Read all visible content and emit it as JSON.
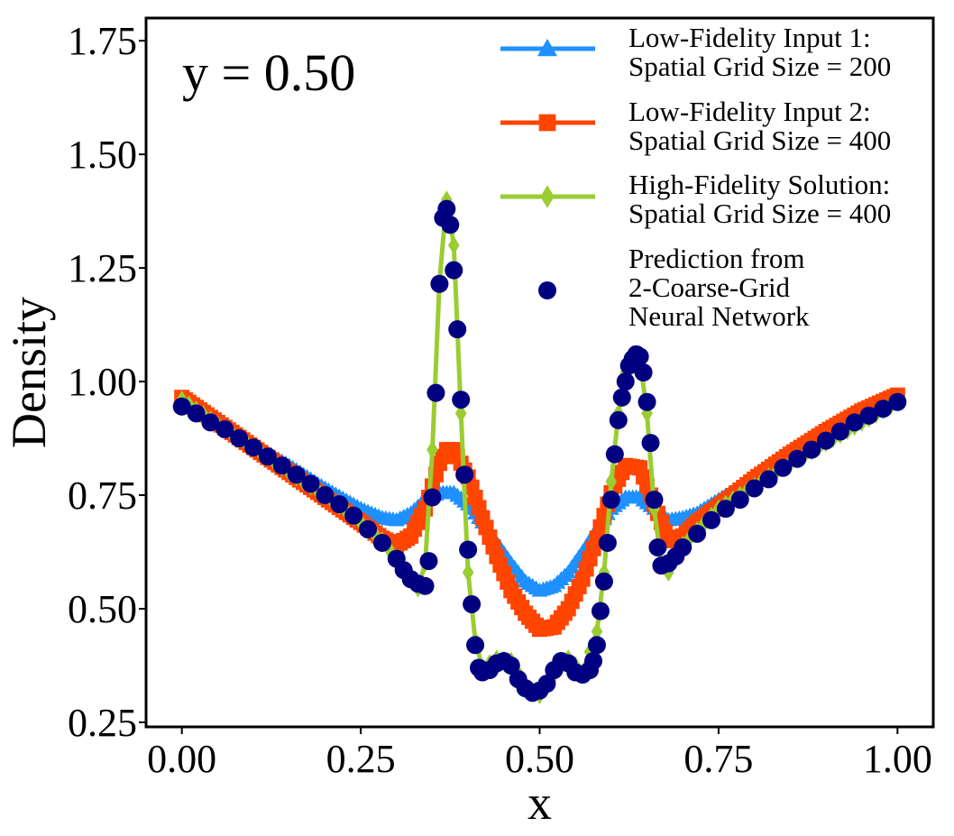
{
  "chart_data": {
    "type": "line",
    "title": "",
    "annotation": "y = 0.50",
    "xlabel": "x",
    "ylabel": "Density",
    "xlim": [
      -0.05,
      1.05
    ],
    "ylim": [
      0.24,
      1.8
    ],
    "xticks": [
      "0.00",
      "0.25",
      "0.50",
      "0.75",
      "1.00"
    ],
    "yticks": [
      "0.25",
      "0.50",
      "0.75",
      "1.00",
      "1.25",
      "1.50",
      "1.75"
    ],
    "grid": false,
    "legend_position": "top-right",
    "series": [
      {
        "name": "Low-Fidelity Input 1:\nSpatial Grid Size = 200",
        "label_lines": [
          "Low-Fidelity Input 1:",
          "Spatial Grid Size = 200"
        ],
        "color": "#1e90ff",
        "marker": "triangle",
        "points": [
          [
            0.0,
            0.965
          ],
          [
            0.05,
            0.91
          ],
          [
            0.1,
            0.86
          ],
          [
            0.15,
            0.815
          ],
          [
            0.2,
            0.765
          ],
          [
            0.25,
            0.72
          ],
          [
            0.28,
            0.7
          ],
          [
            0.3,
            0.695
          ],
          [
            0.32,
            0.71
          ],
          [
            0.34,
            0.74
          ],
          [
            0.36,
            0.755
          ],
          [
            0.38,
            0.755
          ],
          [
            0.4,
            0.73
          ],
          [
            0.42,
            0.69
          ],
          [
            0.44,
            0.645
          ],
          [
            0.46,
            0.6
          ],
          [
            0.48,
            0.56
          ],
          [
            0.5,
            0.54
          ],
          [
            0.52,
            0.55
          ],
          [
            0.54,
            0.58
          ],
          [
            0.56,
            0.625
          ],
          [
            0.58,
            0.675
          ],
          [
            0.6,
            0.72
          ],
          [
            0.62,
            0.745
          ],
          [
            0.64,
            0.745
          ],
          [
            0.66,
            0.72
          ],
          [
            0.68,
            0.695
          ],
          [
            0.7,
            0.7
          ],
          [
            0.72,
            0.71
          ],
          [
            0.75,
            0.74
          ],
          [
            0.8,
            0.785
          ],
          [
            0.85,
            0.83
          ],
          [
            0.9,
            0.875
          ],
          [
            0.95,
            0.92
          ],
          [
            1.0,
            0.97
          ]
        ]
      },
      {
        "name": "Low-Fidelity Input 2:\nSpatial Grid Size = 400",
        "label_lines": [
          "Low-Fidelity Input 2:",
          "Spatial Grid Size = 400"
        ],
        "color": "#ff4500",
        "marker": "square",
        "points": [
          [
            0.0,
            0.965
          ],
          [
            0.05,
            0.91
          ],
          [
            0.1,
            0.855
          ],
          [
            0.15,
            0.8
          ],
          [
            0.2,
            0.745
          ],
          [
            0.25,
            0.69
          ],
          [
            0.28,
            0.655
          ],
          [
            0.3,
            0.64
          ],
          [
            0.32,
            0.66
          ],
          [
            0.34,
            0.72
          ],
          [
            0.36,
            0.82
          ],
          [
            0.37,
            0.85
          ],
          [
            0.38,
            0.85
          ],
          [
            0.4,
            0.79
          ],
          [
            0.42,
            0.7
          ],
          [
            0.44,
            0.615
          ],
          [
            0.46,
            0.54
          ],
          [
            0.48,
            0.49
          ],
          [
            0.5,
            0.455
          ],
          [
            0.52,
            0.46
          ],
          [
            0.54,
            0.5
          ],
          [
            0.56,
            0.565
          ],
          [
            0.58,
            0.655
          ],
          [
            0.6,
            0.755
          ],
          [
            0.62,
            0.815
          ],
          [
            0.64,
            0.81
          ],
          [
            0.66,
            0.73
          ],
          [
            0.68,
            0.65
          ],
          [
            0.7,
            0.66
          ],
          [
            0.72,
            0.69
          ],
          [
            0.75,
            0.725
          ],
          [
            0.8,
            0.785
          ],
          [
            0.85,
            0.84
          ],
          [
            0.9,
            0.89
          ],
          [
            0.95,
            0.935
          ],
          [
            1.0,
            0.97
          ]
        ]
      },
      {
        "name": "High-Fidelity Solution:\nSpatial Grid Size = 400",
        "label_lines": [
          "High-Fidelity Solution:",
          "Spatial Grid Size = 400"
        ],
        "color": "#9acd32",
        "marker": "diamond",
        "points": [
          [
            0.0,
            0.96
          ],
          [
            0.05,
            0.905
          ],
          [
            0.1,
            0.855
          ],
          [
            0.15,
            0.8
          ],
          [
            0.2,
            0.75
          ],
          [
            0.25,
            0.69
          ],
          [
            0.28,
            0.65
          ],
          [
            0.3,
            0.61
          ],
          [
            0.32,
            0.565
          ],
          [
            0.33,
            0.545
          ],
          [
            0.34,
            0.6
          ],
          [
            0.35,
            0.85
          ],
          [
            0.36,
            1.22
          ],
          [
            0.37,
            1.4
          ],
          [
            0.38,
            1.3
          ],
          [
            0.39,
            0.93
          ],
          [
            0.4,
            0.58
          ],
          [
            0.41,
            0.43
          ],
          [
            0.42,
            0.37
          ],
          [
            0.44,
            0.39
          ],
          [
            0.46,
            0.385
          ],
          [
            0.48,
            0.33
          ],
          [
            0.5,
            0.31
          ],
          [
            0.52,
            0.355
          ],
          [
            0.54,
            0.39
          ],
          [
            0.56,
            0.36
          ],
          [
            0.58,
            0.45
          ],
          [
            0.59,
            0.58
          ],
          [
            0.6,
            0.78
          ],
          [
            0.61,
            0.93
          ],
          [
            0.62,
            1.02
          ],
          [
            0.63,
            1.06
          ],
          [
            0.64,
            1.05
          ],
          [
            0.65,
            0.93
          ],
          [
            0.66,
            0.72
          ],
          [
            0.67,
            0.6
          ],
          [
            0.68,
            0.58
          ],
          [
            0.7,
            0.64
          ],
          [
            0.75,
            0.72
          ],
          [
            0.8,
            0.77
          ],
          [
            0.85,
            0.82
          ],
          [
            0.9,
            0.865
          ],
          [
            0.95,
            0.91
          ],
          [
            1.0,
            0.955
          ]
        ]
      },
      {
        "name": "Prediction from\n2-Coarse-Grid\nNeural Network",
        "label_lines": [
          "Prediction from",
          "2-Coarse-Grid",
          "Neural Network"
        ],
        "color": "#000080",
        "marker": "circle",
        "points": [
          [
            0.0,
            0.945
          ],
          [
            0.02,
            0.93
          ],
          [
            0.04,
            0.91
          ],
          [
            0.06,
            0.895
          ],
          [
            0.08,
            0.875
          ],
          [
            0.1,
            0.855
          ],
          [
            0.12,
            0.835
          ],
          [
            0.14,
            0.815
          ],
          [
            0.16,
            0.795
          ],
          [
            0.18,
            0.775
          ],
          [
            0.2,
            0.75
          ],
          [
            0.22,
            0.73
          ],
          [
            0.24,
            0.705
          ],
          [
            0.26,
            0.675
          ],
          [
            0.28,
            0.645
          ],
          [
            0.3,
            0.61
          ],
          [
            0.31,
            0.585
          ],
          [
            0.32,
            0.565
          ],
          [
            0.33,
            0.555
          ],
          [
            0.34,
            0.55
          ],
          [
            0.345,
            0.605
          ],
          [
            0.35,
            0.745
          ],
          [
            0.355,
            0.975
          ],
          [
            0.36,
            1.215
          ],
          [
            0.365,
            1.36
          ],
          [
            0.37,
            1.38
          ],
          [
            0.375,
            1.345
          ],
          [
            0.38,
            1.245
          ],
          [
            0.385,
            1.115
          ],
          [
            0.39,
            0.96
          ],
          [
            0.395,
            0.795
          ],
          [
            0.4,
            0.63
          ],
          [
            0.405,
            0.51
          ],
          [
            0.41,
            0.42
          ],
          [
            0.415,
            0.37
          ],
          [
            0.42,
            0.36
          ],
          [
            0.43,
            0.365
          ],
          [
            0.44,
            0.38
          ],
          [
            0.45,
            0.385
          ],
          [
            0.46,
            0.375
          ],
          [
            0.47,
            0.345
          ],
          [
            0.48,
            0.325
          ],
          [
            0.49,
            0.315
          ],
          [
            0.5,
            0.32
          ],
          [
            0.51,
            0.335
          ],
          [
            0.52,
            0.365
          ],
          [
            0.53,
            0.385
          ],
          [
            0.54,
            0.38
          ],
          [
            0.55,
            0.36
          ],
          [
            0.56,
            0.355
          ],
          [
            0.57,
            0.365
          ],
          [
            0.575,
            0.385
          ],
          [
            0.58,
            0.42
          ],
          [
            0.585,
            0.495
          ],
          [
            0.59,
            0.56
          ],
          [
            0.595,
            0.645
          ],
          [
            0.6,
            0.74
          ],
          [
            0.605,
            0.84
          ],
          [
            0.61,
            0.915
          ],
          [
            0.615,
            0.965
          ],
          [
            0.62,
            1.0
          ],
          [
            0.625,
            1.035
          ],
          [
            0.63,
            1.05
          ],
          [
            0.635,
            1.06
          ],
          [
            0.64,
            1.055
          ],
          [
            0.645,
            1.02
          ],
          [
            0.65,
            0.955
          ],
          [
            0.655,
            0.865
          ],
          [
            0.66,
            0.74
          ],
          [
            0.665,
            0.635
          ],
          [
            0.67,
            0.595
          ],
          [
            0.68,
            0.6
          ],
          [
            0.69,
            0.615
          ],
          [
            0.7,
            0.635
          ],
          [
            0.72,
            0.665
          ],
          [
            0.74,
            0.695
          ],
          [
            0.76,
            0.72
          ],
          [
            0.78,
            0.74
          ],
          [
            0.8,
            0.765
          ],
          [
            0.82,
            0.785
          ],
          [
            0.84,
            0.81
          ],
          [
            0.86,
            0.83
          ],
          [
            0.88,
            0.85
          ],
          [
            0.9,
            0.87
          ],
          [
            0.92,
            0.89
          ],
          [
            0.94,
            0.91
          ],
          [
            0.96,
            0.925
          ],
          [
            0.98,
            0.94
          ],
          [
            1.0,
            0.955
          ]
        ]
      }
    ]
  }
}
